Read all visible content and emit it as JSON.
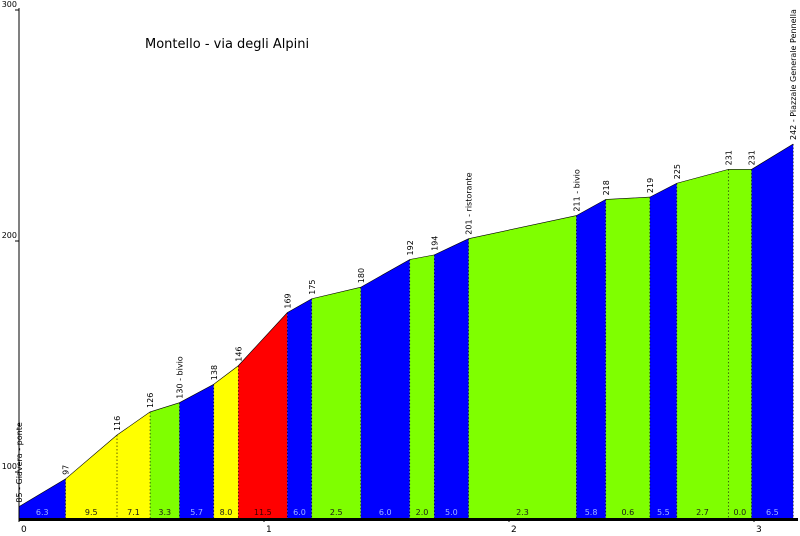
{
  "chart_data": {
    "type": "area",
    "title": "Montello - via degli Alpini",
    "xlabel": "",
    "ylabel": "",
    "xlim": [
      0,
      3.2
    ],
    "ylim": [
      80,
      300
    ],
    "y_ticks": [
      100,
      200,
      300
    ],
    "x_ticks": [
      0,
      1,
      2,
      3
    ],
    "grid": false,
    "profile": [
      {
        "x": 0.0,
        "y": 85,
        "label": "85 - Giavera - ponte"
      },
      {
        "x": 0.19,
        "y": 97,
        "label": "97"
      },
      {
        "x": 0.4,
        "y": 116,
        "label": "116"
      },
      {
        "x": 0.535,
        "y": 126,
        "label": "126"
      },
      {
        "x": 0.655,
        "y": 130,
        "label": "130 - bivio"
      },
      {
        "x": 0.795,
        "y": 138,
        "label": "138"
      },
      {
        "x": 0.895,
        "y": 146,
        "label": "146"
      },
      {
        "x": 1.095,
        "y": 169,
        "label": "169"
      },
      {
        "x": 1.195,
        "y": 175,
        "label": "175"
      },
      {
        "x": 1.395,
        "y": 180,
        "label": "180"
      },
      {
        "x": 1.595,
        "y": 192,
        "label": "192"
      },
      {
        "x": 1.695,
        "y": 194,
        "label": "194"
      },
      {
        "x": 1.835,
        "y": 201,
        "label": "201 - ristorante"
      },
      {
        "x": 2.275,
        "y": 211,
        "label": "211 - bivio"
      },
      {
        "x": 2.395,
        "y": 218,
        "label": "218"
      },
      {
        "x": 2.575,
        "y": 219,
        "label": "219"
      },
      {
        "x": 2.685,
        "y": 225,
        "label": "225"
      },
      {
        "x": 2.895,
        "y": 231,
        "label": "231"
      },
      {
        "x": 2.99,
        "y": 231,
        "label": "231"
      },
      {
        "x": 3.16,
        "y": 242,
        "label": "242 - Piazzale Generale Pennella"
      }
    ],
    "segments": [
      {
        "from": 0.0,
        "to": 0.19,
        "gradient": "6.3",
        "color": "#0000ff"
      },
      {
        "from": 0.19,
        "to": 0.4,
        "gradient": "9.5",
        "color": "#ffff00"
      },
      {
        "from": 0.4,
        "to": 0.535,
        "gradient": "7.1",
        "color": "#ffff00"
      },
      {
        "from": 0.535,
        "to": 0.655,
        "gradient": "3.3",
        "color": "#7fff00"
      },
      {
        "from": 0.655,
        "to": 0.795,
        "gradient": "5.7",
        "color": "#0000ff"
      },
      {
        "from": 0.795,
        "to": 0.895,
        "gradient": "8.0",
        "color": "#ffff00"
      },
      {
        "from": 0.895,
        "to": 1.095,
        "gradient": "11.5",
        "color": "#ff0000"
      },
      {
        "from": 1.095,
        "to": 1.195,
        "gradient": "6.0",
        "color": "#0000ff"
      },
      {
        "from": 1.195,
        "to": 1.395,
        "gradient": "2.5",
        "color": "#7fff00"
      },
      {
        "from": 1.395,
        "to": 1.595,
        "gradient": "6.0",
        "color": "#0000ff"
      },
      {
        "from": 1.595,
        "to": 1.695,
        "gradient": "2.0",
        "color": "#7fff00"
      },
      {
        "from": 1.695,
        "to": 1.835,
        "gradient": "5.0",
        "color": "#0000ff"
      },
      {
        "from": 1.835,
        "to": 2.275,
        "gradient": "2.3",
        "color": "#7fff00"
      },
      {
        "from": 2.275,
        "to": 2.395,
        "gradient": "5.8",
        "color": "#0000ff"
      },
      {
        "from": 2.395,
        "to": 2.575,
        "gradient": "0.6",
        "color": "#7fff00"
      },
      {
        "from": 2.575,
        "to": 2.685,
        "gradient": "5.5",
        "color": "#0000ff"
      },
      {
        "from": 2.685,
        "to": 2.895,
        "gradient": "2.7",
        "color": "#7fff00"
      },
      {
        "from": 2.895,
        "to": 2.99,
        "gradient": "0.0",
        "color": "#7fff00"
      },
      {
        "from": 2.99,
        "to": 3.16,
        "gradient": "6.5",
        "color": "#0000ff"
      }
    ]
  }
}
